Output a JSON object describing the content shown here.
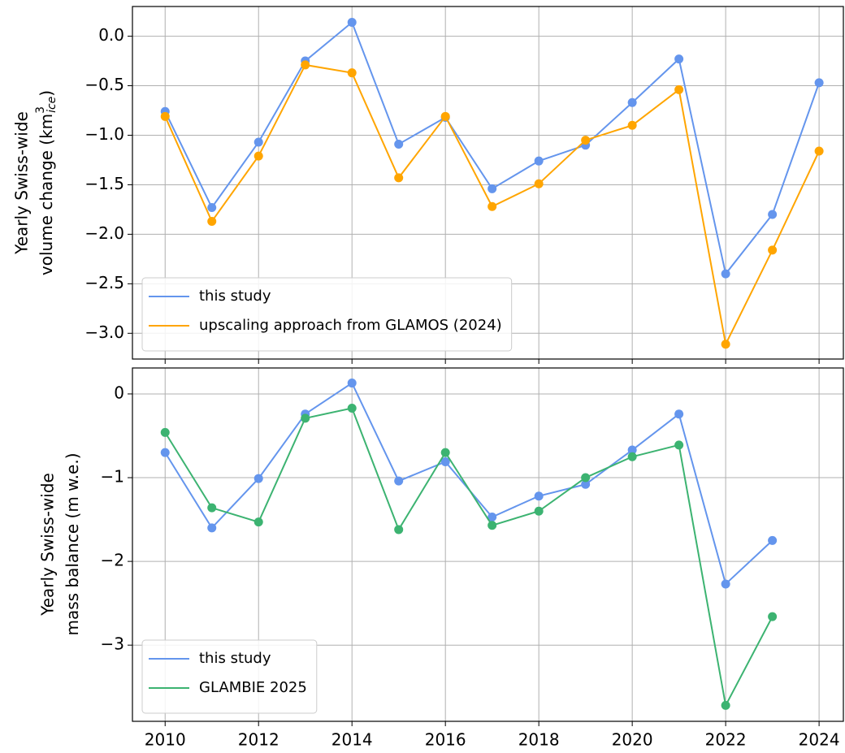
{
  "chart_data": [
    {
      "type": "line",
      "ylabel": [
        "Yearly Swiss-wide",
        "volume change (km",
        "3",
        "ice",
        ")"
      ],
      "x": [
        2010,
        2011,
        2012,
        2013,
        2014,
        2015,
        2016,
        2017,
        2018,
        2019,
        2020,
        2021,
        2022,
        2023,
        2024
      ],
      "series": [
        {
          "name": "this study",
          "color": "#6495ED",
          "values": [
            -0.76,
            -1.73,
            -1.07,
            -0.25,
            0.14,
            -1.09,
            -0.82,
            -1.54,
            -1.26,
            -1.1,
            -0.67,
            -0.23,
            -2.4,
            -1.8,
            -0.47
          ]
        },
        {
          "name": "upscaling approach from GLAMOS (2024)",
          "color": "#FFA500",
          "values": [
            -0.81,
            -1.87,
            -1.21,
            -0.29,
            -0.37,
            -1.43,
            -0.81,
            -1.72,
            -1.49,
            -1.05,
            -0.9,
            -0.54,
            -3.11,
            -2.16,
            -1.16
          ]
        }
      ],
      "xlim": [
        2009.3,
        2024.52
      ],
      "xticks": [
        2010,
        2012,
        2014,
        2016,
        2018,
        2020,
        2022,
        2024
      ],
      "ylim": [
        -3.26,
        0.3
      ],
      "yticks": [
        {
          "value": 0,
          "label": "0.0"
        },
        {
          "value": -0.5,
          "label": "−0.5"
        },
        {
          "value": -1,
          "label": "−1.0"
        },
        {
          "value": -1.5,
          "label": "−1.5"
        },
        {
          "value": -2,
          "label": "−2.0"
        },
        {
          "value": -2.5,
          "label": "−2.5"
        },
        {
          "value": -3,
          "label": "−3.0"
        }
      ],
      "grid": true,
      "legend": "lower left"
    },
    {
      "type": "line",
      "ylabel": [
        "Yearly Swiss-wide",
        "mass balance (m w.e.)"
      ],
      "x": [
        2010,
        2011,
        2012,
        2013,
        2014,
        2015,
        2016,
        2017,
        2018,
        2019,
        2020,
        2021,
        2022,
        2023
      ],
      "series": [
        {
          "name": "this study",
          "color": "#6495ED",
          "values": [
            -0.7,
            -1.6,
            -1.01,
            -0.24,
            0.13,
            -1.04,
            -0.81,
            -1.47,
            -1.22,
            -1.08,
            -0.67,
            -0.24,
            -2.27,
            -1.75
          ]
        },
        {
          "name": "GLAMBIE 2025",
          "color": "#3CB371",
          "values": [
            -0.46,
            -1.36,
            -1.53,
            -0.29,
            -0.17,
            -1.62,
            -0.7,
            -1.57,
            -1.4,
            -1.0,
            -0.75,
            -0.61,
            -3.72,
            -2.66
          ]
        }
      ],
      "xlim": [
        2009.3,
        2024.52
      ],
      "xticks": [
        2010,
        2012,
        2014,
        2016,
        2018,
        2020,
        2022,
        2024
      ],
      "ylim": [
        -3.91,
        0.31
      ],
      "yticks": [
        0,
        {
          "value": -1,
          "label": "−1"
        },
        {
          "value": -2,
          "label": "−2"
        },
        {
          "value": -3,
          "label": "−3"
        }
      ],
      "grid": true,
      "legend": "lower left",
      "show_xtick_labels": true
    }
  ]
}
